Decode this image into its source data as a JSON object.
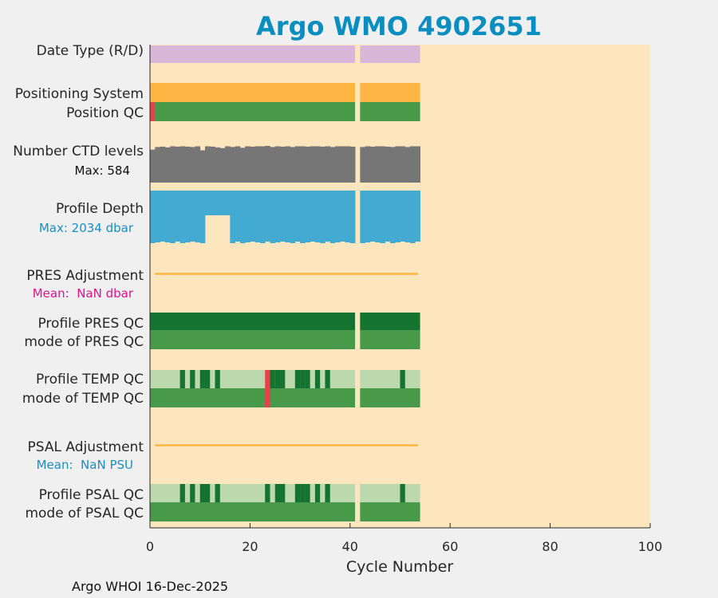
{
  "title": "Argo WMO 4902651",
  "footer": "Argo WHOI 16-Dec-2025",
  "colors": {
    "background": "#f0f0f0",
    "plot_bg": "#fde6bd",
    "title": "#0a8dbf",
    "date_type": "#d9b7d9",
    "positioning": "#fdb643",
    "qc_good": "#48994a",
    "qc_dark": "#157330",
    "qc_light": "#bbd9ad",
    "qc_bad": "#e8414a",
    "ctd_levels": "#767676",
    "profile_depth": "#43abd1",
    "adjustment_line": "#fdb643",
    "pres_mean": "#e0128e",
    "psal_mean": "#1a8ebf",
    "max_depth": "#1a8ebf"
  },
  "chart_data": {
    "type": "table",
    "xlabel": "Cycle Number",
    "xlim": [
      0,
      100
    ],
    "xticks": [
      "0",
      "20",
      "40",
      "60",
      "80",
      "100"
    ],
    "cycles": {
      "first": 1,
      "last": 54,
      "missing": [
        42
      ]
    },
    "rows": [
      {
        "id": "date_type",
        "label": "Date Type (R/D)"
      },
      {
        "id": "positioning_system",
        "label": "Positioning System"
      },
      {
        "id": "position_qc",
        "label": "Position QC",
        "bad_cycles": [
          1
        ]
      },
      {
        "id": "ctd_levels",
        "label": "Number CTD levels",
        "annotation": "Max: 584",
        "max": 584
      },
      {
        "id": "profile_depth",
        "label": "Profile Depth",
        "annotation": "Max: 2034 dbar",
        "max": 2034,
        "shallow_cycles": [
          12,
          13,
          14,
          15,
          16
        ],
        "shallow_fraction": 0.47
      },
      {
        "id": "pres_adjustment",
        "label": "PRES Adjustment",
        "annotation": "Mean:  NaN dbar"
      },
      {
        "id": "profile_pres_qc",
        "label": "Profile PRES QC"
      },
      {
        "id": "mode_pres_qc",
        "label": "mode of PRES QC"
      },
      {
        "id": "profile_temp_qc",
        "label": "Profile TEMP QC",
        "dark_cycles": [
          7,
          9,
          11,
          12,
          14,
          25,
          26,
          27,
          30,
          31,
          32,
          34,
          36,
          51
        ],
        "bad_cycles": [
          24
        ]
      },
      {
        "id": "mode_temp_qc",
        "label": "mode of TEMP QC",
        "bad_cycles": [
          24
        ]
      },
      {
        "id": "psal_adjustment",
        "label": "PSAL Adjustment",
        "annotation": "Mean:  NaN PSU"
      },
      {
        "id": "profile_psal_qc",
        "label": "Profile PSAL QC",
        "dark_cycles": [
          7,
          9,
          11,
          12,
          14,
          24,
          26,
          27,
          30,
          31,
          32,
          34,
          36,
          51
        ]
      },
      {
        "id": "mode_psal_qc",
        "label": "mode of PSAL QC"
      }
    ],
    "ctd_levels_fraction": [
      0.9,
      0.97,
      0.98,
      0.96,
      0.99,
      0.98,
      0.99,
      0.98,
      0.97,
      0.99,
      0.88,
      0.99,
      0.98,
      0.96,
      0.94,
      0.99,
      0.97,
      0.99,
      0.95,
      0.99,
      0.98,
      0.99,
      0.99,
      1.0,
      0.97,
      0.99,
      0.98,
      0.99,
      0.97,
      0.99,
      0.99,
      0.98,
      0.99,
      0.99,
      0.98,
      0.99,
      0.97,
      0.99,
      0.99,
      0.99,
      0.98,
      0,
      0.97,
      0.99,
      0.98,
      0.99,
      0.99,
      0.98,
      0.97,
      0.99,
      0.99,
      0.97,
      0.99,
      0.99
    ]
  }
}
